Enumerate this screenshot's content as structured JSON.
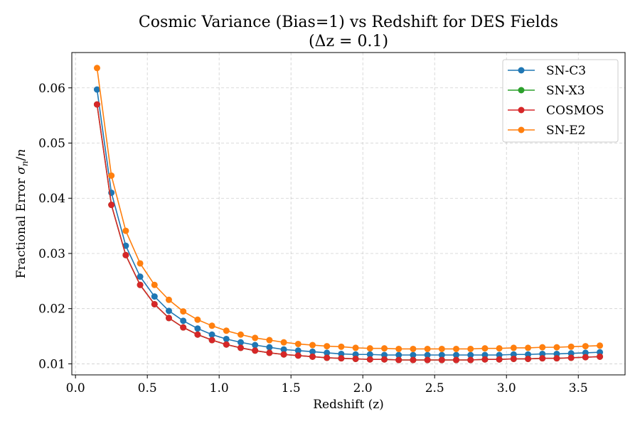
{
  "chart_data": {
    "type": "line",
    "title": "Cosmic Variance (Bias=1) vs Redshift for DES Fields",
    "subtitle": "(Δz = 0.1)",
    "xlabel": "Redshift (z)",
    "ylabel_prefix": "Fractional Error ",
    "ylabel_sigma": "σ",
    "ylabel_sub": "n",
    "ylabel_tail": "/",
    "ylabel_n": "n",
    "xlim": [
      -0.0255,
      3.8255
    ],
    "ylim": [
      0.008,
      0.0664
    ],
    "xticks": [
      0.0,
      0.5,
      1.0,
      1.5,
      2.0,
      2.5,
      3.0,
      3.5
    ],
    "xtick_labels": [
      "0.0",
      "0.5",
      "1.0",
      "1.5",
      "2.0",
      "2.5",
      "3.0",
      "3.5"
    ],
    "yticks": [
      0.01,
      0.02,
      0.03,
      0.04,
      0.05,
      0.06
    ],
    "ytick_labels": [
      "0.01",
      "0.02",
      "0.03",
      "0.04",
      "0.05",
      "0.06"
    ],
    "grid": true,
    "legend_position": "top-right",
    "x": [
      0.15,
      0.25,
      0.35,
      0.45,
      0.55,
      0.65,
      0.75,
      0.85,
      0.95,
      1.05,
      1.15,
      1.25,
      1.35,
      1.45,
      1.55,
      1.65,
      1.75,
      1.85,
      1.95,
      2.05,
      2.15,
      2.25,
      2.35,
      2.45,
      2.55,
      2.65,
      2.75,
      2.85,
      2.95,
      3.05,
      3.15,
      3.25,
      3.35,
      3.45,
      3.55,
      3.65
    ],
    "series": [
      {
        "name": "SN-C3",
        "color": "#1f77b4",
        "values": [
          0.0597,
          0.041,
          0.0314,
          0.0258,
          0.0222,
          0.0196,
          0.0178,
          0.0164,
          0.0153,
          0.0145,
          0.0139,
          0.0134,
          0.013,
          0.0126,
          0.0124,
          0.0122,
          0.012,
          0.0118,
          0.0117,
          0.0117,
          0.0116,
          0.0116,
          0.0116,
          0.0116,
          0.0116,
          0.0116,
          0.0116,
          0.0116,
          0.0116,
          0.0117,
          0.0117,
          0.0118,
          0.0118,
          0.0119,
          0.012,
          0.0121
        ]
      },
      {
        "name": "SN-X3",
        "color": "#2ca02c",
        "values": [
          0.057,
          0.0388,
          0.0297,
          0.0243,
          0.0208,
          0.0183,
          0.0166,
          0.0153,
          0.0143,
          0.0135,
          0.0129,
          0.0124,
          0.012,
          0.0117,
          0.0115,
          0.0113,
          0.0111,
          0.011,
          0.0109,
          0.0108,
          0.0108,
          0.0107,
          0.0107,
          0.0107,
          0.0107,
          0.0107,
          0.0107,
          0.0108,
          0.0108,
          0.0109,
          0.0109,
          0.011,
          0.011,
          0.0111,
          0.0112,
          0.0113
        ]
      },
      {
        "name": "COSMOS",
        "color": "#d62728",
        "values": [
          0.057,
          0.0388,
          0.0297,
          0.0243,
          0.0208,
          0.0183,
          0.0166,
          0.0153,
          0.0143,
          0.0135,
          0.0129,
          0.0124,
          0.012,
          0.0117,
          0.0115,
          0.0113,
          0.0111,
          0.011,
          0.0109,
          0.0108,
          0.0108,
          0.0107,
          0.0107,
          0.0107,
          0.0107,
          0.0107,
          0.0107,
          0.0108,
          0.0108,
          0.0109,
          0.0109,
          0.011,
          0.011,
          0.0111,
          0.0112,
          0.0113
        ]
      },
      {
        "name": "SN-E2",
        "color": "#ff7f0e",
        "values": [
          0.0636,
          0.0441,
          0.0341,
          0.0282,
          0.0243,
          0.0216,
          0.0195,
          0.018,
          0.0169,
          0.016,
          0.0153,
          0.0147,
          0.0143,
          0.0139,
          0.0136,
          0.0134,
          0.0132,
          0.0131,
          0.0129,
          0.0128,
          0.0128,
          0.0127,
          0.0127,
          0.0127,
          0.0127,
          0.0127,
          0.0127,
          0.0128,
          0.0128,
          0.0129,
          0.0129,
          0.013,
          0.013,
          0.0131,
          0.0132,
          0.0133
        ]
      }
    ]
  }
}
